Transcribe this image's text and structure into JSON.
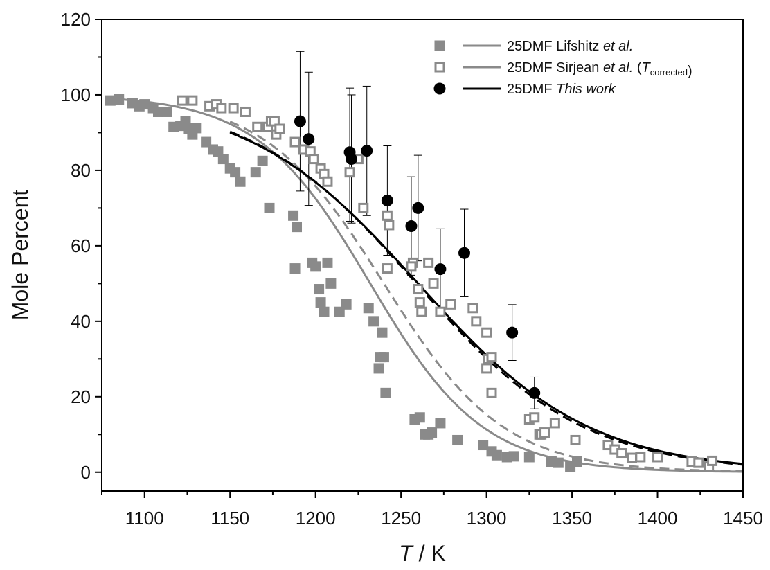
{
  "chart_data": {
    "type": "scatter",
    "title": "",
    "xlabel": {
      "italic": "T",
      "rest": " / K"
    },
    "ylabel": "Mole Percent",
    "xlim": [
      1075,
      1450
    ],
    "ylim": [
      -5,
      120
    ],
    "x_ticks": [
      1100,
      1150,
      1200,
      1250,
      1300,
      1350,
      1400,
      1450
    ],
    "y_ticks": [
      0,
      20,
      40,
      60,
      80,
      100,
      120
    ],
    "grid": false,
    "legend_position": "top-right",
    "colors": {
      "gray": "#8a8a8a",
      "black": "#000000"
    },
    "legend": [
      {
        "key": "lifshitz",
        "marker": "filled-square",
        "color": "#8a8a8a",
        "parts": [
          {
            "text": "25DMF Lifshitz ",
            "style": "normal"
          },
          {
            "text": "et al.",
            "style": "italic"
          }
        ]
      },
      {
        "key": "sirjean",
        "marker": "open-square",
        "color": "#8a8a8a",
        "parts": [
          {
            "text": "25DMF Sirjean ",
            "style": "normal"
          },
          {
            "text": "et al.",
            "style": "italic"
          },
          {
            "text": " (",
            "style": "normal"
          },
          {
            "text": "T",
            "style": "italic"
          },
          {
            "text": "corrected",
            "style": "sub"
          },
          {
            "text": ")",
            "style": "normal"
          }
        ]
      },
      {
        "key": "thiswork",
        "marker": "filled-circle",
        "color": "#000000",
        "parts": [
          {
            "text": "25DMF ",
            "style": "normal"
          },
          {
            "text": "This work",
            "style": "italic"
          }
        ]
      }
    ],
    "series": [
      {
        "key": "lifshitz_points",
        "marker": "filled-square",
        "color": "#8a8a8a",
        "points": [
          [
            1080,
            98.5
          ],
          [
            1085,
            98.8
          ],
          [
            1093,
            97.8
          ],
          [
            1097,
            97
          ],
          [
            1100,
            97.5
          ],
          [
            1105,
            96.5
          ],
          [
            1108,
            95.5
          ],
          [
            1113,
            95.5
          ],
          [
            1117,
            91.5
          ],
          [
            1121,
            91.8
          ],
          [
            1124,
            93
          ],
          [
            1126,
            91
          ],
          [
            1128,
            89.5
          ],
          [
            1130,
            91.2
          ],
          [
            1136,
            87.5
          ],
          [
            1140,
            85.5
          ],
          [
            1143,
            85
          ],
          [
            1146,
            83
          ],
          [
            1150,
            80.5
          ],
          [
            1153,
            79.5
          ],
          [
            1156,
            77
          ],
          [
            1165,
            79.5
          ],
          [
            1169,
            82.5
          ],
          [
            1173,
            70
          ],
          [
            1187,
            68
          ],
          [
            1189,
            65
          ],
          [
            1188,
            54
          ],
          [
            1198,
            55.5
          ],
          [
            1200,
            54.5
          ],
          [
            1202,
            48.5
          ],
          [
            1203,
            45
          ],
          [
            1205,
            42.5
          ],
          [
            1207,
            55.5
          ],
          [
            1209,
            50
          ],
          [
            1214,
            42.5
          ],
          [
            1218,
            44.5
          ],
          [
            1231,
            43.5
          ],
          [
            1234,
            40
          ],
          [
            1237,
            27.5
          ],
          [
            1238,
            30.5
          ],
          [
            1239,
            37
          ],
          [
            1240,
            30.5
          ],
          [
            1241,
            21
          ],
          [
            1258,
            14
          ],
          [
            1261,
            14.5
          ],
          [
            1264,
            10
          ],
          [
            1266,
            10
          ],
          [
            1268,
            10.5
          ],
          [
            1273,
            13
          ],
          [
            1283,
            8.5
          ],
          [
            1298,
            7.2
          ],
          [
            1303,
            5.5
          ],
          [
            1306,
            4.5
          ],
          [
            1312,
            4
          ],
          [
            1316,
            4.2
          ],
          [
            1325,
            4
          ],
          [
            1338,
            2.8
          ],
          [
            1342,
            2.5
          ],
          [
            1349,
            1.5
          ],
          [
            1353,
            2.8
          ]
        ]
      },
      {
        "key": "sirjean_points",
        "marker": "open-square",
        "color": "#8a8a8a",
        "points": [
          [
            1122,
            98.5
          ],
          [
            1128,
            98.5
          ],
          [
            1138,
            97
          ],
          [
            1142,
            97.5
          ],
          [
            1145,
            96.5
          ],
          [
            1152,
            96.5
          ],
          [
            1159,
            95.5
          ],
          [
            1166,
            91.5
          ],
          [
            1172,
            91.5
          ],
          [
            1174,
            93
          ],
          [
            1176,
            93
          ],
          [
            1177,
            89.5
          ],
          [
            1179,
            91
          ],
          [
            1188,
            87.5
          ],
          [
            1193,
            85.5
          ],
          [
            1197,
            85
          ],
          [
            1199,
            83
          ],
          [
            1203,
            80.5
          ],
          [
            1205,
            79
          ],
          [
            1207,
            77
          ],
          [
            1220,
            79.5
          ],
          [
            1225,
            83
          ],
          [
            1228,
            70
          ],
          [
            1242,
            68
          ],
          [
            1243,
            65.5
          ],
          [
            1242,
            54
          ],
          [
            1257,
            55.5
          ],
          [
            1256,
            54.5
          ],
          [
            1260,
            48.5
          ],
          [
            1261,
            45
          ],
          [
            1262,
            42.5
          ],
          [
            1266,
            55.5
          ],
          [
            1269,
            50
          ],
          [
            1273,
            42.5
          ],
          [
            1279,
            44.5
          ],
          [
            1292,
            43.5
          ],
          [
            1294,
            40
          ],
          [
            1300,
            27.5
          ],
          [
            1301,
            30
          ],
          [
            1300,
            37
          ],
          [
            1303,
            30.5
          ],
          [
            1303,
            21
          ],
          [
            1325,
            14
          ],
          [
            1328,
            14.5
          ],
          [
            1331,
            10
          ],
          [
            1332,
            10
          ],
          [
            1334,
            10.5
          ],
          [
            1340,
            13
          ],
          [
            1352,
            8.5
          ],
          [
            1371,
            7.2
          ],
          [
            1375,
            6
          ],
          [
            1379,
            5
          ],
          [
            1385,
            3.8
          ],
          [
            1390,
            4
          ],
          [
            1400,
            4
          ],
          [
            1420,
            2.8
          ],
          [
            1424,
            2.5
          ],
          [
            1430,
            1.5
          ],
          [
            1432,
            3
          ]
        ]
      },
      {
        "key": "thiswork_points",
        "marker": "filled-circle",
        "color": "#000000",
        "error_bars": true,
        "points": [
          {
            "x": 1191,
            "y": 93,
            "lo": 74.5,
            "hi": 111.5
          },
          {
            "x": 1196,
            "y": 88.3,
            "lo": 70.7,
            "hi": 106
          },
          {
            "x": 1220,
            "y": 84.8,
            "lo": 66.5,
            "hi": 101.8
          },
          {
            "x": 1221,
            "y": 83,
            "lo": 66,
            "hi": 100
          },
          {
            "x": 1230,
            "y": 85.2,
            "lo": 68,
            "hi": 102.3
          },
          {
            "x": 1242,
            "y": 72,
            "lo": 57.5,
            "hi": 86.5
          },
          {
            "x": 1256,
            "y": 65.2,
            "lo": 52.2,
            "hi": 78.3
          },
          {
            "x": 1260,
            "y": 70,
            "lo": 56,
            "hi": 84
          },
          {
            "x": 1273,
            "y": 53.8,
            "lo": 43,
            "hi": 64.5
          },
          {
            "x": 1287,
            "y": 58.1,
            "lo": 46.5,
            "hi": 69.7
          },
          {
            "x": 1315,
            "y": 37,
            "lo": 29.6,
            "hi": 44.4
          },
          {
            "x": 1328,
            "y": 21,
            "lo": 16.8,
            "hi": 25.2
          }
        ]
      }
    ],
    "curves": [
      {
        "key": "gray_solid",
        "color": "#8a8a8a",
        "dash": "solid",
        "x_range": [
          1080,
          1450
        ],
        "model": {
          "mid": 1232,
          "width": 33
        }
      },
      {
        "key": "gray_dashed",
        "color": "#8a8a8a",
        "dash": "dashed",
        "x_range": [
          1150,
          1450
        ],
        "model": {
          "mid": 1240,
          "width": 35
        }
      },
      {
        "key": "black_solid",
        "color": "#000000",
        "dash": "solid",
        "x_range": [
          1150,
          1450
        ],
        "model": {
          "mid": 1260,
          "width": 50
        }
      },
      {
        "key": "black_dashed",
        "color": "#000000",
        "dash": "dashed",
        "x_range": [
          1150,
          1450
        ],
        "model": {
          "mid": 1259,
          "width": 49
        }
      }
    ]
  }
}
